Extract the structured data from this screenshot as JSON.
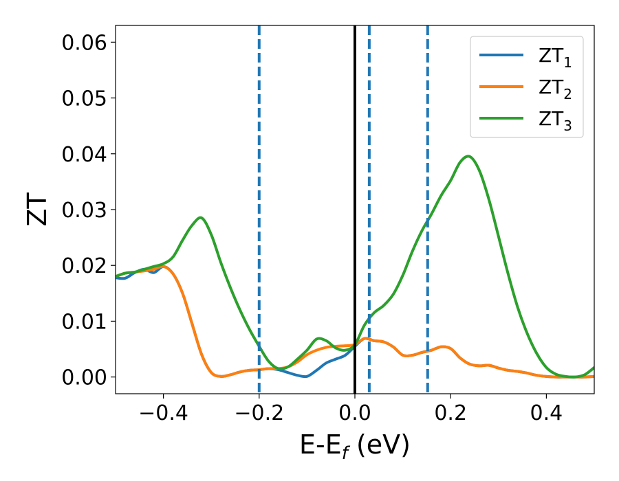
{
  "chart_data": {
    "type": "line",
    "title": "",
    "xlabel": "E-E",
    "xlabel_sub": "f",
    "xlabel_unit": " (eV)",
    "ylabel": "ZT",
    "xlim": [
      -0.5,
      0.5
    ],
    "ylim": [
      -0.003,
      0.063
    ],
    "x_ticks": [
      -0.4,
      -0.2,
      0.0,
      0.2,
      0.4
    ],
    "x_tick_labels": [
      "−0.4",
      "−0.2",
      "0.0",
      "0.2",
      "0.4"
    ],
    "y_ticks": [
      0.0,
      0.01,
      0.02,
      0.03,
      0.04,
      0.05,
      0.06
    ],
    "y_tick_labels": [
      "0.00",
      "0.01",
      "0.02",
      "0.03",
      "0.04",
      "0.05",
      "0.06"
    ],
    "grid": false,
    "legend_position": "top-right",
    "vertical_lines": [
      {
        "x": 0.0,
        "style": "solid",
        "color": "#000000"
      },
      {
        "x": -0.2,
        "style": "dashed",
        "color": "#1f77b4"
      },
      {
        "x": 0.03,
        "style": "dashed",
        "color": "#1f77b4"
      },
      {
        "x": 0.152,
        "style": "dashed",
        "color": "#1f77b4"
      }
    ],
    "series": [
      {
        "name": "ZT",
        "sub": "1",
        "color": "#1f77b4",
        "x": [
          -0.5,
          -0.48,
          -0.46,
          -0.44,
          -0.42,
          -0.4,
          -0.38,
          -0.36,
          -0.34,
          -0.32,
          -0.3,
          -0.28,
          -0.26,
          -0.24,
          -0.22,
          -0.2,
          -0.18,
          -0.16,
          -0.14,
          -0.12,
          -0.1,
          -0.08,
          -0.06,
          -0.04,
          -0.02,
          0.0,
          0.02,
          0.04,
          0.06,
          0.08,
          0.1,
          0.12,
          0.14,
          0.16,
          0.18,
          0.2,
          0.22,
          0.24,
          0.26,
          0.28,
          0.3,
          0.32,
          0.34,
          0.36,
          0.38,
          0.4,
          0.42,
          0.44,
          0.46,
          0.48,
          0.5
        ],
        "values": [
          0.0178,
          0.0177,
          0.0187,
          0.0193,
          0.0187,
          0.0198,
          0.0185,
          0.015,
          0.0095,
          0.004,
          0.0008,
          0.0001,
          0.0004,
          0.0009,
          0.0012,
          0.0013,
          0.0015,
          0.0013,
          0.0008,
          0.0003,
          0.0001,
          0.0012,
          0.0025,
          0.0032,
          0.0039,
          0.0055,
          0.0069,
          0.0065,
          0.0063,
          0.0054,
          0.0039,
          0.0039,
          0.0044,
          0.0048,
          0.0054,
          0.0051,
          0.0034,
          0.0023,
          0.002,
          0.0021,
          0.0016,
          0.0012,
          0.001,
          0.0007,
          0.0003,
          0.0001,
          0.0,
          0.0,
          0.0,
          0.0,
          0.0001
        ]
      },
      {
        "name": "ZT",
        "sub": "2",
        "color": "#ff7f0e",
        "x": [
          -0.5,
          -0.48,
          -0.46,
          -0.44,
          -0.42,
          -0.4,
          -0.38,
          -0.36,
          -0.34,
          -0.32,
          -0.3,
          -0.28,
          -0.26,
          -0.24,
          -0.22,
          -0.2,
          -0.18,
          -0.16,
          -0.14,
          -0.12,
          -0.1,
          -0.08,
          -0.06,
          -0.04,
          -0.02,
          0.0,
          0.02,
          0.04,
          0.06,
          0.08,
          0.1,
          0.12,
          0.14,
          0.16,
          0.18,
          0.2,
          0.22,
          0.24,
          0.26,
          0.28,
          0.3,
          0.32,
          0.34,
          0.36,
          0.38,
          0.4,
          0.42,
          0.44,
          0.46,
          0.48,
          0.5
        ],
        "values": [
          0.018,
          0.0186,
          0.0188,
          0.019,
          0.0193,
          0.0198,
          0.0185,
          0.015,
          0.0095,
          0.004,
          0.0008,
          0.0001,
          0.0004,
          0.0009,
          0.0012,
          0.0013,
          0.0015,
          0.0015,
          0.0018,
          0.0027,
          0.004,
          0.0048,
          0.0053,
          0.0055,
          0.0056,
          0.0058,
          0.0069,
          0.0065,
          0.0063,
          0.0054,
          0.0039,
          0.0039,
          0.0044,
          0.0048,
          0.0054,
          0.0051,
          0.0034,
          0.0023,
          0.002,
          0.0021,
          0.0016,
          0.0012,
          0.001,
          0.0007,
          0.0003,
          0.0001,
          0.0,
          0.0,
          0.0,
          0.0,
          0.0001
        ]
      },
      {
        "name": "ZT",
        "sub": "3",
        "color": "#2ca02c",
        "x": [
          -0.5,
          -0.48,
          -0.46,
          -0.44,
          -0.42,
          -0.4,
          -0.38,
          -0.36,
          -0.34,
          -0.32,
          -0.3,
          -0.28,
          -0.26,
          -0.24,
          -0.22,
          -0.2,
          -0.18,
          -0.16,
          -0.14,
          -0.12,
          -0.1,
          -0.08,
          -0.06,
          -0.04,
          -0.02,
          0.0,
          0.02,
          0.04,
          0.06,
          0.08,
          0.1,
          0.12,
          0.14,
          0.16,
          0.18,
          0.2,
          0.22,
          0.24,
          0.26,
          0.28,
          0.3,
          0.32,
          0.34,
          0.36,
          0.38,
          0.4,
          0.42,
          0.44,
          0.46,
          0.48,
          0.5
        ],
        "values": [
          0.018,
          0.0186,
          0.0188,
          0.0193,
          0.0198,
          0.0203,
          0.0215,
          0.0245,
          0.0272,
          0.0285,
          0.0255,
          0.0205,
          0.016,
          0.012,
          0.0085,
          0.0055,
          0.0028,
          0.0015,
          0.0018,
          0.0032,
          0.0048,
          0.0068,
          0.0065,
          0.0052,
          0.0048,
          0.0058,
          0.0093,
          0.0115,
          0.0128,
          0.0148,
          0.0182,
          0.0225,
          0.0262,
          0.0292,
          0.0325,
          0.0352,
          0.0385,
          0.0395,
          0.037,
          0.0318,
          0.0252,
          0.0185,
          0.0125,
          0.0078,
          0.0042,
          0.0017,
          0.0005,
          0.0001,
          0.0,
          0.0004,
          0.0017
        ]
      }
    ]
  }
}
